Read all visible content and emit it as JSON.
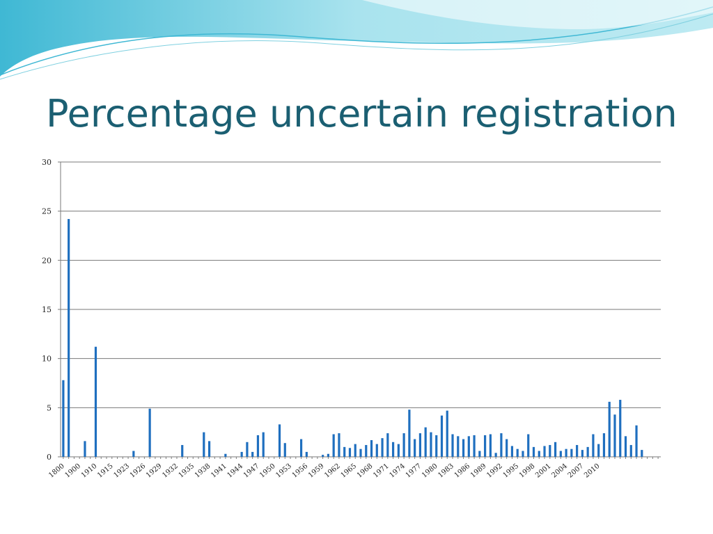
{
  "slide": {
    "title": "Percentage uncertain registration",
    "colors": {
      "title": "#1b5f72",
      "bars": "#1f6fbf",
      "wave_light": "#a9e3ee",
      "wave_dark": "#3fb8d4"
    }
  },
  "chart_data": {
    "type": "bar",
    "title": "",
    "xlabel": "",
    "ylabel": "",
    "ylim": [
      0,
      30
    ],
    "yticks": [
      0,
      5,
      10,
      15,
      20,
      25,
      30
    ],
    "grid": true,
    "legend": "none",
    "tick_labels": [
      "1800",
      "1900",
      "1910",
      "1915",
      "1923",
      "1926",
      "1929",
      "1932",
      "1935",
      "1938",
      "1941",
      "1944",
      "1947",
      "1950",
      "1953",
      "1956",
      "1959",
      "1962",
      "1965",
      "1968",
      "1971",
      "1974",
      "1977",
      "1980",
      "1983",
      "1986",
      "1989",
      "1992",
      "1995",
      "1998",
      "2001",
      "2004",
      "2007",
      "2010"
    ],
    "values": [
      7.8,
      24.2,
      0,
      0,
      1.6,
      0,
      11.2,
      0,
      0,
      0,
      0,
      0,
      0,
      0.6,
      0,
      0,
      4.9,
      0,
      0,
      0,
      0,
      0,
      1.2,
      0,
      0,
      0,
      2.5,
      1.6,
      0,
      0,
      0.3,
      0,
      0,
      0.5,
      1.5,
      0.5,
      2.2,
      2.5,
      0,
      0,
      3.3,
      1.4,
      0,
      0,
      1.8,
      0.5,
      0,
      0,
      0.2,
      0.3,
      2.3,
      2.4,
      1.0,
      0.9,
      1.3,
      0.8,
      1.2,
      1.7,
      1.3,
      1.9,
      2.4,
      1.5,
      1.3,
      2.4,
      4.8,
      1.8,
      2.4,
      3.0,
      2.5,
      2.2,
      4.2,
      4.7,
      2.3,
      2.1,
      1.8,
      2.1,
      2.2,
      0.6,
      2.2,
      2.3,
      0.4,
      2.4,
      1.8,
      1.1,
      0.8,
      0.6,
      2.3,
      1.0,
      0.6,
      1.1,
      1.2,
      1.5,
      0.6,
      0.8,
      0.8,
      1.2,
      0.7,
      1.0,
      2.3,
      1.3,
      2.4,
      5.6,
      4.3,
      5.8,
      2.1,
      1.2,
      3.2,
      0.7,
      0,
      0,
      0
    ]
  }
}
